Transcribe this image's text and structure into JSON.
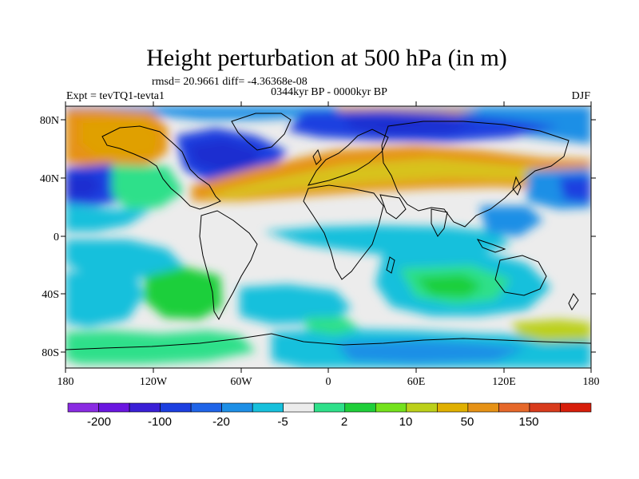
{
  "title": "Height perturbation at 500 hPa (in m)",
  "stats": "rmsd= 20.9661  diff= -4.36368e-08",
  "period": "0344kyr BP - 0000kyr BP",
  "experiment": "Expt = tevTQ1-tevta1",
  "season": "DJF",
  "lat_ticks": [
    "80N",
    "40N",
    "0",
    "40S",
    "80S"
  ],
  "lon_ticks": [
    "180",
    "120W",
    "60W",
    "0",
    "60E",
    "120E",
    "180"
  ],
  "colorbar": {
    "colors": [
      "#8a2be2",
      "#6a16e0",
      "#3a1fd6",
      "#1c3fe0",
      "#1f64e8",
      "#1e8fe6",
      "#17c0dc",
      "#ececec",
      "#2fe08a",
      "#1fcf3a",
      "#74e21c",
      "#bcd01a",
      "#e0b000",
      "#e69216",
      "#e6682a",
      "#d83b1c",
      "#d71e0a"
    ],
    "labels": [
      "-200",
      "-100",
      "-20",
      "-5",
      "2",
      "10",
      "50",
      "150"
    ]
  },
  "colors": {
    "neutral": "#ececec",
    "cyan": "#17c0dc",
    "light_blue": "#1e8fe6",
    "blue": "#1c3fe0",
    "deep_blue": "#1a2fd0",
    "teal_green": "#2fe08a",
    "green": "#1fcf3a",
    "yellow_green": "#bcd01a",
    "yellow": "#d8c21a",
    "orange": "#e0a000",
    "dark_orange": "#e69216"
  }
}
